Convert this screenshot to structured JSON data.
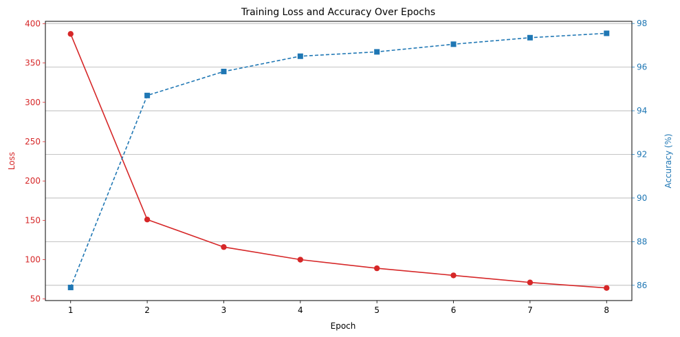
{
  "chart_data": {
    "type": "line",
    "title": "Training Loss and Accuracy Over Epochs",
    "xlabel": "Epoch",
    "x": [
      1,
      2,
      3,
      4,
      5,
      6,
      7,
      8
    ],
    "xlim": [
      0.67,
      8.33
    ],
    "grid": "horizontal lines at right-axis ticks",
    "left_axis": {
      "label": "Loss",
      "color": "#d62728",
      "ylim": [
        48,
        403
      ],
      "ticks": [
        50,
        100,
        150,
        200,
        250,
        300,
        350,
        400
      ]
    },
    "right_axis": {
      "label": "Accuracy (%)",
      "color": "#1f77b4",
      "ylim": [
        85.3,
        98.1
      ],
      "ticks": [
        86,
        88,
        90,
        92,
        94,
        96,
        98
      ]
    },
    "series": [
      {
        "key": "loss",
        "axis": "left",
        "color": "#d62728",
        "line_style": "solid",
        "marker": "circle",
        "values": [
          387,
          151,
          116,
          100,
          89,
          80,
          71,
          64
        ]
      },
      {
        "key": "accuracy",
        "axis": "right",
        "color": "#1f77b4",
        "line_style": "dashed",
        "marker": "square",
        "values": [
          85.9,
          94.7,
          95.8,
          96.5,
          96.7,
          97.05,
          97.35,
          97.55
        ]
      }
    ]
  }
}
